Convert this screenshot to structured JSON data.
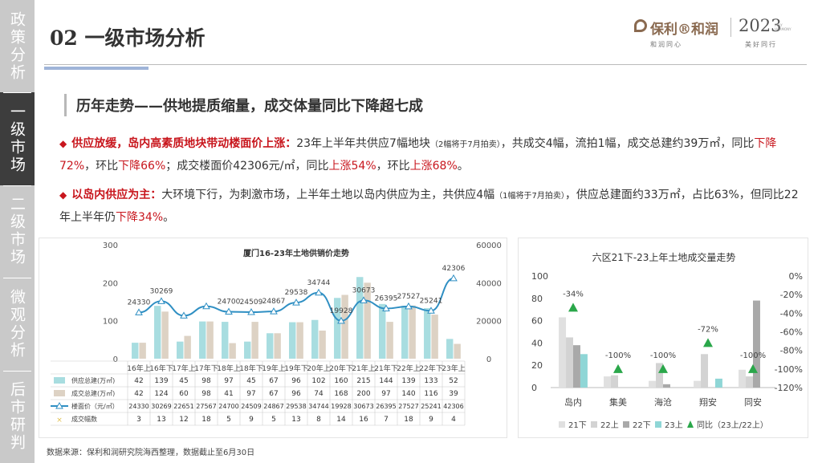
{
  "sidebar": {
    "items": [
      {
        "label": "政策分析",
        "active": false
      },
      {
        "label": "一级市场",
        "active": true
      },
      {
        "label": "二级市场",
        "active": false
      },
      {
        "label": "微观分析",
        "active": false
      },
      {
        "label": "后市研判",
        "active": false
      }
    ]
  },
  "header": {
    "title": "02 一级市场分析",
    "logo_brand": "保利®和润",
    "logo_year": "2023",
    "logo_sub": "POLY HARMONY",
    "logo_tag1": "和润同心",
    "logo_tag2": "美好同行"
  },
  "headline": "历年走势——供地提质缩量，成交体量同比下降超七成",
  "bullet1": {
    "lead": "供应放缓，岛内高素质地块带动楼面价上涨：",
    "t1": "23年上半年共供应7幅地块",
    "note": "（2幅将于7月拍卖）",
    "t2": "，共成交4幅，流拍1幅，成交总建约39万㎡，同比",
    "h1": "下降72%",
    "t3": "，环比",
    "h2": "下降66%",
    "t4": "；成交楼面价42306元/㎡，同比",
    "h3": "上涨54%",
    "t5": "，环比",
    "h4": "上涨68%",
    "t6": "。"
  },
  "bullet2": {
    "lead": "以岛内供应为主：",
    "t1": "大环境下行，为刺激市场，上半年土地以岛内供应为主，共供应4幅",
    "note": "（1幅将于7月拍卖）",
    "t2": "，供应总建面约33万㎡，占比63%，但同比22年上半年仍",
    "h1": "下降34%",
    "t3": "。"
  },
  "source": "数据来源：保利和润研究院海西整理，数据截止至6月30日",
  "watermark": "保利®和润研究院",
  "colors": {
    "accent_red": "#c8161d",
    "supply": "#a8dde0",
    "deal": "#ddd2c4",
    "price": "#2f8fc3",
    "teal_bar": "#8fd6d6"
  },
  "chart_data": [
    {
      "type": "bar",
      "title": "厦门16-23年土地供销价走势",
      "categories": [
        "16年上",
        "16年下",
        "17年上",
        "17年下",
        "18年上",
        "18年下",
        "19年上",
        "19年下",
        "20年上",
        "20年下",
        "21年上",
        "21年下",
        "22年上",
        "22年下",
        "23年上"
      ],
      "ylim": [
        0,
        300
      ],
      "y_ticks": [
        "0",
        "100",
        "200",
        "300"
      ],
      "y2lim": [
        0,
        60000
      ],
      "y2_ticks": [
        "0",
        "20000",
        "40000",
        "60000"
      ],
      "series": [
        {
          "name": "供应总建(万㎡)",
          "type": "bar",
          "values": [
            42,
            139,
            45,
            98,
            97,
            45,
            67,
            96,
            102,
            160,
            215,
            144,
            139,
            133,
            52
          ]
        },
        {
          "name": "成交总建(万㎡)",
          "type": "bar",
          "values": [
            42,
            124,
            60,
            98,
            41,
            97,
            67,
            96,
            74,
            168,
            200,
            97,
            140,
            116,
            39
          ]
        },
        {
          "name": "楼面价（元/㎡）",
          "type": "line",
          "axis": "right",
          "values": [
            24330,
            30269,
            22651,
            27567,
            24700,
            24509,
            24867,
            29538,
            34744,
            19928,
            30673,
            26395,
            27527,
            25241,
            42306
          ]
        },
        {
          "name": "成交幅数",
          "type": "table",
          "values": [
            3,
            13,
            12,
            18,
            5,
            9,
            5,
            13,
            8,
            14,
            16,
            7,
            18,
            9,
            4
          ]
        }
      ],
      "point_labels": [
        "24330",
        "30269",
        "",
        "",
        "24700",
        "24509",
        "24867",
        "29538",
        "34744",
        "19928",
        "30673",
        "26395",
        "27527",
        "25241",
        "42306"
      ],
      "table": {
        "rows": [
          {
            "name": "供应总建(万㎡)",
            "cells": [
              "42",
              "139",
              "45",
              "98",
              "97",
              "45",
              "67",
              "96",
              "102",
              "160",
              "215",
              "144",
              "139",
              "133",
              "52"
            ]
          },
          {
            "name": "成交总建(万㎡)",
            "cells": [
              "42",
              "124",
              "60",
              "98",
              "41",
              "97",
              "67",
              "96",
              "74",
              "168",
              "200",
              "97",
              "140",
              "116",
              "39"
            ]
          },
          {
            "name": "楼面价（元/㎡）",
            "cells": [
              "24330",
              "30269",
              "22651",
              "27567",
              "24700",
              "24509",
              "24867",
              "29538",
              "34744",
              "19928",
              "30673",
              "26395",
              "27527",
              "25241",
              "42306"
            ]
          },
          {
            "name": "成交幅数",
            "cells": [
              "3",
              "13",
              "12",
              "18",
              "5",
              "9",
              "5",
              "13",
              "8",
              "14",
              "16",
              "7",
              "18",
              "9",
              "4"
            ]
          }
        ]
      }
    },
    {
      "type": "bar",
      "title": "六区21下-23上年土地成交量走势",
      "categories": [
        "岛内",
        "集美",
        "海沧",
        "翔安",
        "同安"
      ],
      "ylim": [
        0,
        100
      ],
      "y_ticks": [
        "0",
        "20",
        "40",
        "60",
        "80",
        "100"
      ],
      "y2lim": [
        -120,
        0
      ],
      "y2_ticks": [
        "0%",
        "-20%",
        "-40%",
        "-60%",
        "-80%",
        "-100%",
        "-120%"
      ],
      "series": [
        {
          "name": "21下",
          "values": [
            63,
            10,
            6,
            6,
            16
          ]
        },
        {
          "name": "22上",
          "values": [
            45,
            11,
            22,
            30,
            10
          ]
        },
        {
          "name": "22下",
          "values": [
            38,
            0,
            3,
            0,
            78
          ]
        },
        {
          "name": "23上",
          "values": [
            30,
            0,
            0,
            8,
            0
          ]
        },
        {
          "name": "同比（23上/22上）",
          "type": "scatter",
          "axis": "right",
          "values": [
            -34,
            -100,
            -100,
            -72,
            -100
          ]
        }
      ],
      "point_labels": [
        "-34%",
        "-100%",
        "-100%",
        "-72%",
        "-100%"
      ],
      "legend_position": "bottom"
    }
  ]
}
